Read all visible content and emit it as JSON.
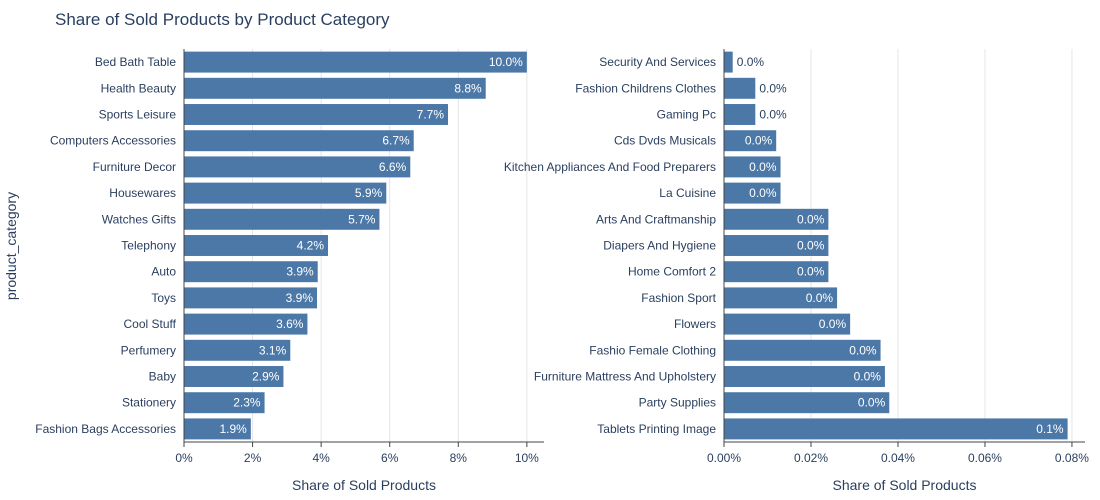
{
  "chart_data": {
    "type": "bar",
    "orientation": "horizontal",
    "title": "Share of Sold Products by Product Category",
    "ylabel": "product_category",
    "bar_color": "#4c78a8",
    "grid_color": "#e5e5e5",
    "panels": [
      {
        "xlabel": "Share of Sold Products",
        "xlim": [
          0,
          0.105
        ],
        "tick_values": [
          0,
          0.02,
          0.04,
          0.06,
          0.08,
          0.1
        ],
        "tick_labels": [
          "0%",
          "2%",
          "4%",
          "6%",
          "8%",
          "10%"
        ],
        "categories": [
          "Bed Bath Table",
          "Health Beauty",
          "Sports Leisure",
          "Computers Accessories",
          "Furniture Decor",
          "Housewares",
          "Watches Gifts",
          "Telephony",
          "Auto",
          "Toys",
          "Cool Stuff",
          "Perfumery",
          "Baby",
          "Stationery",
          "Fashion Bags Accessories"
        ],
        "values": [
          0.1,
          0.088,
          0.077,
          0.067,
          0.066,
          0.059,
          0.057,
          0.042,
          0.039,
          0.0388,
          0.036,
          0.031,
          0.029,
          0.0235,
          0.0195
        ],
        "value_labels": [
          "10.0%",
          "8.8%",
          "7.7%",
          "6.7%",
          "6.6%",
          "5.9%",
          "5.7%",
          "4.2%",
          "3.9%",
          "3.9%",
          "3.6%",
          "3.1%",
          "2.9%",
          "2.3%",
          "1.9%"
        ],
        "label_inside": [
          true,
          true,
          true,
          true,
          true,
          true,
          true,
          true,
          true,
          true,
          true,
          true,
          true,
          true,
          true
        ]
      },
      {
        "xlabel": "Share of Sold Products",
        "xlim": [
          0,
          0.00083
        ],
        "tick_values": [
          0,
          0.0002,
          0.0004,
          0.0006,
          0.0008
        ],
        "tick_labels": [
          "0.00%",
          "0.02%",
          "0.04%",
          "0.06%",
          "0.08%"
        ],
        "categories": [
          "Security And Services",
          "Fashion Childrens Clothes",
          "Gaming Pc",
          "Cds Dvds Musicals",
          "Kitchen Appliances And Food Preparers",
          "La Cuisine",
          "Arts And Craftmanship",
          "Diapers And Hygiene",
          "Home Comfort 2",
          "Fashion Sport",
          "Flowers",
          "Fashio Female Clothing",
          "Furniture Mattress And Upholstery",
          "Party Supplies",
          "Tablets Printing Image"
        ],
        "values": [
          2e-05,
          7.2e-05,
          7.2e-05,
          0.00012,
          0.00013,
          0.00013,
          0.00024,
          0.00024,
          0.00024,
          0.00026,
          0.00029,
          0.00036,
          0.00037,
          0.00038,
          0.00079
        ],
        "value_labels": [
          "0.0%",
          "0.0%",
          "0.0%",
          "0.0%",
          "0.0%",
          "0.0%",
          "0.0%",
          "0.0%",
          "0.0%",
          "0.0%",
          "0.0%",
          "0.0%",
          "0.0%",
          "0.0%",
          "0.1%"
        ],
        "label_inside": [
          false,
          false,
          false,
          true,
          true,
          true,
          true,
          true,
          true,
          true,
          true,
          true,
          true,
          true,
          true
        ]
      }
    ]
  }
}
